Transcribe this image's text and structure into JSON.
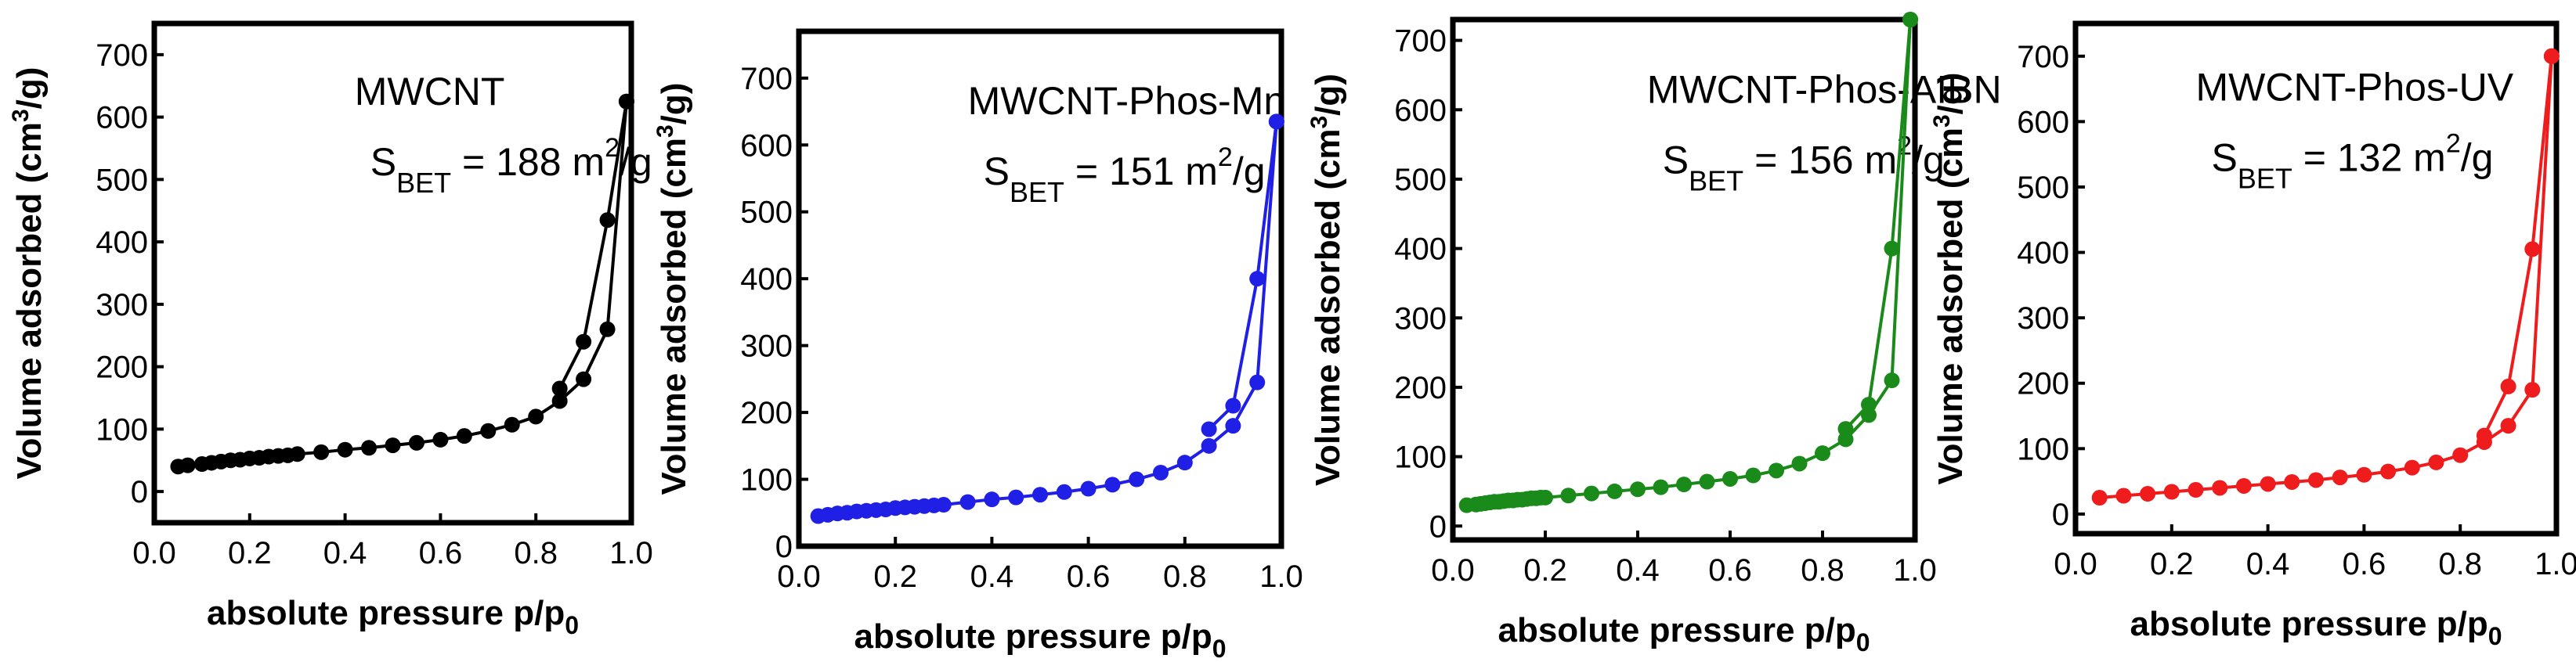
{
  "chart_data": [
    {
      "type": "scatter",
      "title": "MWCNT",
      "annotation": {
        "S": "S",
        "sub": "BET",
        "text": " = 188 m",
        "sup": "2",
        "unit": "/g"
      },
      "xlabel": {
        "main": "absolute pressure p/p",
        "sub": "0"
      },
      "ylabel": {
        "main": "Volume adsorbed (cm",
        "sup": "3",
        "unit": "/g)"
      },
      "xlim": [
        0.0,
        1.0
      ],
      "ylim": [
        -50,
        750
      ],
      "xticks": [
        "0.0",
        "0.2",
        "0.4",
        "0.6",
        "0.8",
        "1.0"
      ],
      "yticks": [
        "0",
        "100",
        "200",
        "300",
        "400",
        "500",
        "600",
        "700"
      ],
      "color": "#000000",
      "series": [
        {
          "x": [
            0.05,
            0.07,
            0.1,
            0.12,
            0.14,
            0.16,
            0.18,
            0.2,
            0.22,
            0.24,
            0.26,
            0.28,
            0.3,
            0.35,
            0.4,
            0.45,
            0.5,
            0.55,
            0.6,
            0.65,
            0.7,
            0.75,
            0.8,
            0.85,
            0.9,
            0.95,
            0.99
          ],
          "y": [
            40,
            42,
            44,
            46,
            48,
            50,
            51,
            53,
            54,
            56,
            57,
            58,
            60,
            63,
            67,
            70,
            74,
            78,
            83,
            89,
            97,
            107,
            120,
            145,
            180,
            260,
            625
          ]
        },
        {
          "x": [
            0.85,
            0.9,
            0.95,
            0.99
          ],
          "y": [
            165,
            240,
            435,
            625
          ]
        }
      ]
    },
    {
      "type": "scatter",
      "title": "MWCNT-Phos-Mn",
      "annotation": {
        "S": "S",
        "sub": "BET",
        "text": " = 151 m",
        "sup": "2",
        "unit": "/g"
      },
      "xlabel": {
        "main": "absolute pressure p/p",
        "sub": "0"
      },
      "ylabel": {
        "main": "Volume adsorbed (cm",
        "sup": "3",
        "unit": "/g)"
      },
      "xlim": [
        0.0,
        1.0
      ],
      "ylim": [
        0,
        770
      ],
      "xticks": [
        "0.0",
        "0.2",
        "0.4",
        "0.6",
        "0.8",
        "1.0"
      ],
      "yticks": [
        "0",
        "100",
        "200",
        "300",
        "400",
        "500",
        "600",
        "700"
      ],
      "color": "#1f1fe6",
      "series": [
        {
          "x": [
            0.04,
            0.06,
            0.08,
            0.1,
            0.12,
            0.14,
            0.16,
            0.18,
            0.2,
            0.22,
            0.24,
            0.26,
            0.28,
            0.3,
            0.35,
            0.4,
            0.45,
            0.5,
            0.55,
            0.6,
            0.65,
            0.7,
            0.75,
            0.8,
            0.85,
            0.9,
            0.95,
            0.99
          ],
          "y": [
            45,
            47,
            49,
            50,
            52,
            53,
            54,
            55,
            57,
            58,
            59,
            60,
            61,
            62,
            66,
            70,
            73,
            77,
            81,
            86,
            92,
            100,
            110,
            125,
            150,
            180,
            245,
            635
          ]
        },
        {
          "x": [
            0.85,
            0.9,
            0.95,
            0.99
          ],
          "y": [
            175,
            210,
            400,
            635
          ]
        }
      ]
    },
    {
      "type": "scatter",
      "title": "MWCNT-Phos-AIBN",
      "annotation": {
        "S": "S",
        "sub": "BET",
        "text": " = 156 m",
        "sup": "2",
        "unit": "/g"
      },
      "xlabel": {
        "main": "absolute pressure p/p",
        "sub": "0"
      },
      "ylabel": {
        "main": "Volume adsorbed (cm",
        "sup": "3",
        "unit": "/g)"
      },
      "xlim": [
        0.0,
        1.0
      ],
      "ylim": [
        -20,
        730
      ],
      "xticks": [
        "0.0",
        "0.2",
        "0.4",
        "0.6",
        "0.8",
        "1.0"
      ],
      "yticks": [
        "0",
        "100",
        "200",
        "300",
        "400",
        "500",
        "600",
        "700"
      ],
      "color": "#1a8a1a",
      "series": [
        {
          "x": [
            0.03,
            0.05,
            0.06,
            0.07,
            0.08,
            0.09,
            0.1,
            0.11,
            0.12,
            0.13,
            0.14,
            0.15,
            0.16,
            0.17,
            0.18,
            0.19,
            0.2,
            0.25,
            0.3,
            0.35,
            0.4,
            0.45,
            0.5,
            0.55,
            0.6,
            0.65,
            0.7,
            0.75,
            0.8,
            0.85,
            0.9,
            0.95,
            0.99
          ],
          "y": [
            30,
            31,
            32,
            33,
            34,
            35,
            35,
            36,
            37,
            37,
            38,
            38,
            39,
            40,
            40,
            41,
            41,
            44,
            47,
            50,
            53,
            56,
            60,
            64,
            68,
            73,
            80,
            90,
            105,
            125,
            160,
            210,
            730
          ]
        },
        {
          "x": [
            0.85,
            0.9,
            0.95,
            0.99
          ],
          "y": [
            140,
            175,
            400,
            730
          ]
        }
      ]
    },
    {
      "type": "scatter",
      "title": "MWCNT-Phos-UV",
      "annotation": {
        "S": "S",
        "sub": "BET",
        "text": " = 132 m",
        "sup": "2",
        "unit": "/g"
      },
      "xlabel": {
        "main": "absolute pressure p/p",
        "sub": "0"
      },
      "ylabel": {
        "main": "Volume adsorbed (cm",
        "sup": "3",
        "unit": "/g)"
      },
      "xlim": [
        0.0,
        1.0
      ],
      "ylim": [
        -30,
        750
      ],
      "xticks": [
        "0.0",
        "0.2",
        "0.4",
        "0.6",
        "0.8",
        "1.0"
      ],
      "yticks": [
        "0",
        "100",
        "200",
        "300",
        "400",
        "500",
        "600",
        "700"
      ],
      "color": "#ee1c1c",
      "series": [
        {
          "x": [
            0.05,
            0.1,
            0.15,
            0.2,
            0.25,
            0.3,
            0.35,
            0.4,
            0.45,
            0.5,
            0.55,
            0.6,
            0.65,
            0.7,
            0.75,
            0.8,
            0.85,
            0.9,
            0.95,
            0.99
          ],
          "y": [
            25,
            28,
            31,
            34,
            37,
            40,
            43,
            46,
            49,
            52,
            56,
            60,
            65,
            71,
            79,
            90,
            110,
            135,
            190,
            700
          ]
        },
        {
          "x": [
            0.85,
            0.9,
            0.95,
            0.99
          ],
          "y": [
            120,
            195,
            405,
            700
          ]
        }
      ]
    }
  ]
}
